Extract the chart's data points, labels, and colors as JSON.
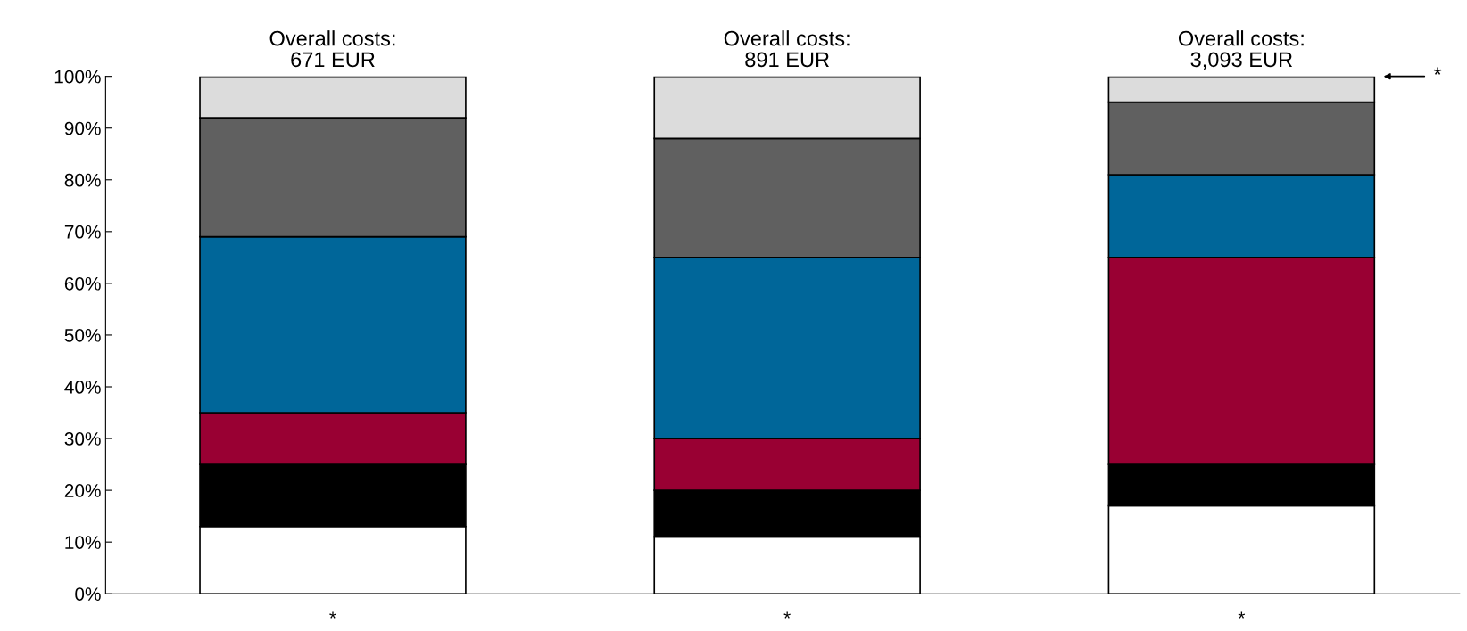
{
  "chart_data": {
    "type": "bar",
    "stacked": true,
    "categories": [
      "*",
      "*",
      "*"
    ],
    "series": [
      {
        "color": "#ffffff",
        "values": [
          13,
          11,
          17
        ]
      },
      {
        "color": "#000000",
        "values": [
          12,
          9,
          8
        ]
      },
      {
        "color": "#990033",
        "values": [
          10,
          10,
          40
        ]
      },
      {
        "color": "#006699",
        "values": [
          34,
          35,
          16
        ]
      },
      {
        "color": "#606060",
        "values": [
          23,
          23,
          14
        ]
      },
      {
        "color": "#dcdcdc",
        "values": [
          8,
          12,
          5
        ]
      }
    ],
    "ylim": [
      0,
      100
    ],
    "yticks": [
      {
        "value": 0,
        "label": "0%"
      },
      {
        "value": 10,
        "label": "10%"
      },
      {
        "value": 20,
        "label": "20%"
      },
      {
        "value": 30,
        "label": "30%"
      },
      {
        "value": 40,
        "label": "40%"
      },
      {
        "value": 50,
        "label": "50%"
      },
      {
        "value": 60,
        "label": "60%"
      },
      {
        "value": 70,
        "label": "70%"
      },
      {
        "value": 80,
        "label": "80%"
      },
      {
        "value": 90,
        "label": "90%"
      },
      {
        "value": 100,
        "label": "100%"
      }
    ],
    "annotations": [
      "Overall costs:\n671 EUR",
      "Overall costs:\n891 EUR",
      "Overall costs:\n3,093 EUR",
      "*"
    ],
    "grid": false,
    "legend": false
  }
}
